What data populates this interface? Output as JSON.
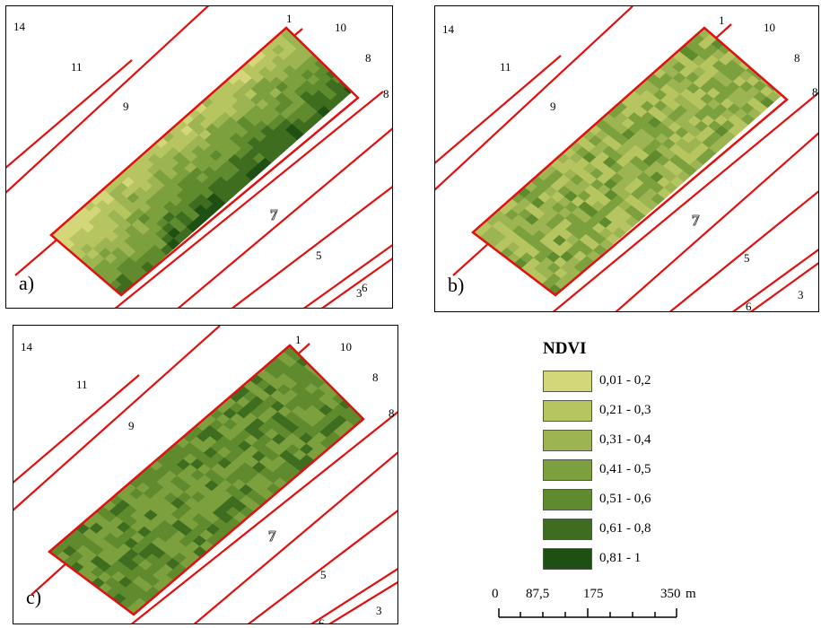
{
  "panels": [
    {
      "tag": "a)",
      "variant": "fine-gradient"
    },
    {
      "tag": "b)",
      "variant": "light-patchy"
    },
    {
      "tag": "c)",
      "variant": "dark-patchy"
    }
  ],
  "parcel_labels": [
    "14",
    "11",
    "9",
    "7",
    "5",
    "3",
    "1",
    "10",
    "8",
    "8",
    "6",
    "1"
  ],
  "colors": {
    "parcel_outline": "#e01010",
    "frame": "#000000"
  },
  "legend": {
    "title": "NDVI",
    "classes": [
      {
        "label": "0,01 - 0,2",
        "color": "#d4d67a"
      },
      {
        "label": "0,21 - 0,3",
        "color": "#b7c560"
      },
      {
        "label": "0,31 - 0,4",
        "color": "#9cb452"
      },
      {
        "label": "0,41 - 0,5",
        "color": "#7da03e"
      },
      {
        "label": "0,51 - 0,6",
        "color": "#5f8a2e"
      },
      {
        "label": "0,61 - 0,8",
        "color": "#3f6d1f"
      },
      {
        "label": "0,81 - 1",
        "color": "#1e5014"
      }
    ]
  },
  "scale_bar": {
    "ticks": [
      "0",
      "87,5",
      "175",
      "350"
    ],
    "unit": "m"
  }
}
